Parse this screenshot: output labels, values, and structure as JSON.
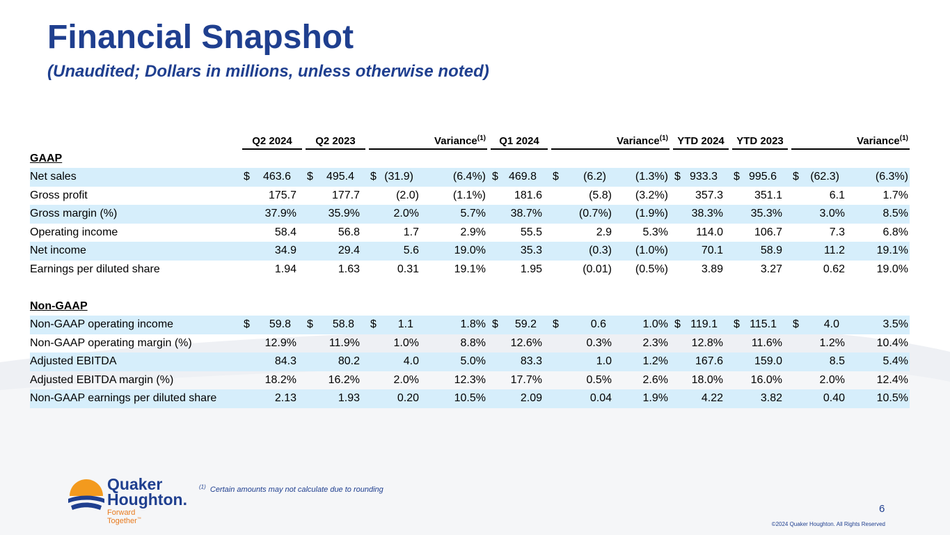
{
  "header": {
    "title": "Financial Snapshot",
    "subtitle": "(Unaudited; Dollars in millions, unless otherwise noted)"
  },
  "columns": {
    "q2_2024": "Q2 2024",
    "q2_2023": "Q2 2023",
    "variance_label": "Variance",
    "variance_note": "(1)",
    "q1_2024": "Q1 2024",
    "ytd_2024": "YTD 2024",
    "ytd_2023": "YTD 2023"
  },
  "sections": {
    "gaap": "GAAP",
    "non_gaap": "Non-GAAP"
  },
  "currency_symbol": "$",
  "rows": [
    {
      "label": "Net sales",
      "q2_24": "463.6",
      "q2_23": "495.4",
      "v1": "(31.9)",
      "v1p": "(6.4%)",
      "q1_24": "469.8",
      "v2": "(6.2)",
      "v2p": "(1.3%)",
      "y24": "933.3",
      "y23": "995.6",
      "v3": "(62.3)",
      "v3p": "(6.3%)"
    },
    {
      "label": "Gross profit",
      "q2_24": "175.7",
      "q2_23": "177.7",
      "v1": "(2.0)",
      "v1p": "(1.1%)",
      "q1_24": "181.6",
      "v2": "(5.8)",
      "v2p": "(3.2%)",
      "y24": "357.3",
      "y23": "351.1",
      "v3": "6.1",
      "v3p": "1.7%"
    },
    {
      "label": "Gross margin (%)",
      "q2_24": "37.9%",
      "q2_23": "35.9%",
      "v1": "2.0%",
      "v1p": "5.7%",
      "q1_24": "38.7%",
      "v2": "(0.7%)",
      "v2p": "(1.9%)",
      "y24": "38.3%",
      "y23": "35.3%",
      "v3": "3.0%",
      "v3p": "8.5%"
    },
    {
      "label": "Operating income",
      "q2_24": "58.4",
      "q2_23": "56.8",
      "v1": "1.7",
      "v1p": "2.9%",
      "q1_24": "55.5",
      "v2": "2.9",
      "v2p": "5.3%",
      "y24": "114.0",
      "y23": "106.7",
      "v3": "7.3",
      "v3p": "6.8%"
    },
    {
      "label": "Net income",
      "q2_24": "34.9",
      "q2_23": "29.4",
      "v1": "5.6",
      "v1p": "19.0%",
      "q1_24": "35.3",
      "v2": "(0.3)",
      "v2p": "(1.0%)",
      "y24": "70.1",
      "y23": "58.9",
      "v3": "11.2",
      "v3p": "19.1%"
    },
    {
      "label": "Earnings per diluted share",
      "q2_24": "1.94",
      "q2_23": "1.63",
      "v1": "0.31",
      "v1p": "19.1%",
      "q1_24": "1.95",
      "v2": "(0.01)",
      "v2p": "(0.5%)",
      "y24": "3.89",
      "y23": "3.27",
      "v3": "0.62",
      "v3p": "19.0%"
    },
    {
      "label": "Non-GAAP operating income",
      "q2_24": "59.8",
      "q2_23": "58.8",
      "v1": "1.1",
      "v1p": "1.8%",
      "q1_24": "59.2",
      "v2": "0.6",
      "v2p": "1.0%",
      "y24": "119.1",
      "y23": "115.1",
      "v3": "4.0",
      "v3p": "3.5%"
    },
    {
      "label": "Non-GAAP operating margin (%)",
      "q2_24": "12.9%",
      "q2_23": "11.9%",
      "v1": "1.0%",
      "v1p": "8.8%",
      "q1_24": "12.6%",
      "v2": "0.3%",
      "v2p": "2.3%",
      "y24": "12.8%",
      "y23": "11.6%",
      "v3": "1.2%",
      "v3p": "10.4%"
    },
    {
      "label": "Adjusted EBITDA",
      "q2_24": "84.3",
      "q2_23": "80.2",
      "v1": "4.0",
      "v1p": "5.0%",
      "q1_24": "83.3",
      "v2": "1.0",
      "v2p": "1.2%",
      "y24": "167.6",
      "y23": "159.0",
      "v3": "8.5",
      "v3p": "5.4%"
    },
    {
      "label": "Adjusted EBITDA margin (%)",
      "q2_24": "18.2%",
      "q2_23": "16.2%",
      "v1": "2.0%",
      "v1p": "12.3%",
      "q1_24": "17.7%",
      "v2": "0.5%",
      "v2p": "2.6%",
      "y24": "18.0%",
      "y23": "16.0%",
      "v3": "2.0%",
      "v3p": "12.4%"
    },
    {
      "label": "Non-GAAP earnings per diluted share",
      "q2_24": "2.13",
      "q2_23": "1.93",
      "v1": "0.20",
      "v1p": "10.5%",
      "q1_24": "2.09",
      "v2": "0.04",
      "v2p": "1.9%",
      "y24": "4.22",
      "y23": "3.82",
      "v3": "0.40",
      "v3p": "10.5%"
    }
  ],
  "footnote": {
    "marker": "(1)",
    "text": "Certain amounts may not calculate due to rounding"
  },
  "logo": {
    "line1": "Quaker",
    "line2": "Houghton.",
    "tagline": "Forward Together",
    "tm": "™"
  },
  "page_number": "6",
  "copyright": "©2024 Quaker Houghton. All Rights Reserved",
  "colors": {
    "brand_blue": "#1f3f8f",
    "brand_orange": "#f39a1e",
    "row_shade": "#d6eefb"
  }
}
